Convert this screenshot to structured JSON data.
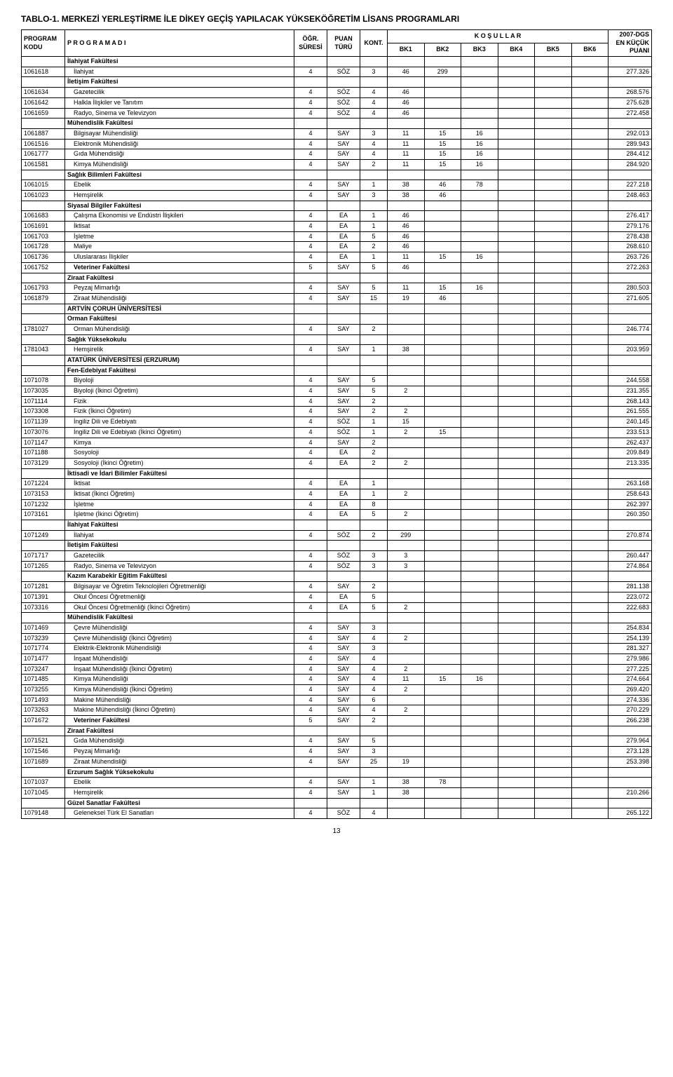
{
  "title": "TABLO-1. MERKEZİ YERLEŞTİRME İLE DİKEY GEÇİŞ YAPILACAK YÜKSEKÖĞRETİM LİSANS PROGRAMLARI",
  "page_number": "13",
  "headers": {
    "top_right": "2007-DGS",
    "kodu_top": "PROGRAM",
    "kodu": "KODU",
    "adi": "P R O G R A M   A D I",
    "sure_top": "ÖĞR.",
    "sure": "SÜRESİ",
    "turu_top": "PUAN",
    "turu": "TÜRÜ",
    "kont": "KONT.",
    "kosul": "K O Ş U L L A R",
    "bk1": "BK1",
    "bk2": "BK2",
    "bk3": "BK3",
    "bk4": "BK4",
    "bk5": "BK5",
    "bk6": "BK6",
    "puan_top": "EN KÜÇÜK",
    "puan": "PUANI"
  },
  "rows": [
    {
      "type": "section",
      "adi": "İlahiyat Fakültesi"
    },
    {
      "kod": "1061618",
      "adi": "İlahiyat",
      "sure": "4",
      "turu": "SÖZ",
      "kont": "3",
      "bk1": "46",
      "bk2": "299",
      "puan": "277.326"
    },
    {
      "type": "section",
      "adi": "İletişim Fakültesi"
    },
    {
      "kod": "1061634",
      "adi": "Gazetecilik",
      "sure": "4",
      "turu": "SÖZ",
      "kont": "4",
      "bk1": "46",
      "puan": "268.576"
    },
    {
      "kod": "1061642",
      "adi": "Halkla İlişkiler ve Tanıtım",
      "sure": "4",
      "turu": "SÖZ",
      "kont": "4",
      "bk1": "46",
      "puan": "275.628"
    },
    {
      "kod": "1061659",
      "adi": "Radyo, Sinema ve Televizyon",
      "sure": "4",
      "turu": "SÖZ",
      "kont": "4",
      "bk1": "46",
      "puan": "272.458"
    },
    {
      "type": "section",
      "adi": "Mühendislik Fakültesi"
    },
    {
      "kod": "1061887",
      "adi": "Bilgisayar Mühendisliği",
      "sure": "4",
      "turu": "SAY",
      "kont": "3",
      "bk1": "11",
      "bk2": "15",
      "bk3": "16",
      "puan": "292.013"
    },
    {
      "kod": "1061516",
      "adi": "Elektronik Mühendisliği",
      "sure": "4",
      "turu": "SAY",
      "kont": "4",
      "bk1": "11",
      "bk2": "15",
      "bk3": "16",
      "puan": "289.943"
    },
    {
      "kod": "1061777",
      "adi": "Gıda Mühendisliği",
      "sure": "4",
      "turu": "SAY",
      "kont": "4",
      "bk1": "11",
      "bk2": "15",
      "bk3": "16",
      "puan": "284.412"
    },
    {
      "kod": "1061581",
      "adi": "Kimya Mühendisliği",
      "sure": "4",
      "turu": "SAY",
      "kont": "2",
      "bk1": "11",
      "bk2": "15",
      "bk3": "16",
      "puan": "284.920"
    },
    {
      "type": "section",
      "adi": "Sağlık Bilimleri Fakültesi"
    },
    {
      "kod": "1061015",
      "adi": "Ebelik",
      "sure": "4",
      "turu": "SAY",
      "kont": "1",
      "bk1": "38",
      "bk2": "46",
      "bk3": "78",
      "puan": "227.218"
    },
    {
      "kod": "1061023",
      "adi": "Hemşirelik",
      "sure": "4",
      "turu": "SAY",
      "kont": "3",
      "bk1": "38",
      "bk2": "46",
      "puan": "248.463"
    },
    {
      "type": "section",
      "adi": "Siyasal Bilgiler Fakültesi"
    },
    {
      "kod": "1061683",
      "adi": "Çalışma Ekonomisi ve Endüstri İlişkileri",
      "sure": "4",
      "turu": "EA",
      "kont": "1",
      "bk1": "46",
      "puan": "276.417"
    },
    {
      "kod": "1061691",
      "adi": "İktisat",
      "sure": "4",
      "turu": "EA",
      "kont": "1",
      "bk1": "46",
      "puan": "279.176"
    },
    {
      "kod": "1061703",
      "adi": "İşletme",
      "sure": "4",
      "turu": "EA",
      "kont": "5",
      "bk1": "46",
      "puan": "278.438"
    },
    {
      "kod": "1061728",
      "adi": "Maliye",
      "sure": "4",
      "turu": "EA",
      "kont": "2",
      "bk1": "46",
      "puan": "268.610"
    },
    {
      "kod": "1061736",
      "adi": "Uluslararası İlişkiler",
      "sure": "4",
      "turu": "EA",
      "kont": "1",
      "bk1": "11",
      "bk2": "15",
      "bk3": "16",
      "puan": "263.726"
    },
    {
      "type": "bold",
      "kod": "1061752",
      "adi": "Veteriner Fakültesi",
      "sure": "5",
      "turu": "SAY",
      "kont": "5",
      "bk1": "46",
      "puan": "272.263"
    },
    {
      "type": "section",
      "adi": "Ziraat Fakültesi"
    },
    {
      "kod": "1061793",
      "adi": "Peyzaj Mimarlığı",
      "sure": "4",
      "turu": "SAY",
      "kont": "5",
      "bk1": "11",
      "bk2": "15",
      "bk3": "16",
      "puan": "280.503"
    },
    {
      "kod": "1061879",
      "adi": "Ziraat Mühendisliği",
      "sure": "4",
      "turu": "SAY",
      "kont": "15",
      "bk1": "19",
      "bk2": "46",
      "puan": "271.605"
    },
    {
      "type": "section",
      "adi": "ARTVİN ÇORUH ÜNİVERSİTESİ"
    },
    {
      "type": "section",
      "adi": "Orman Fakültesi"
    },
    {
      "kod": "1781027",
      "adi": "Orman Mühendisliği",
      "sure": "4",
      "turu": "SAY",
      "kont": "2",
      "puan": "246.774"
    },
    {
      "type": "section",
      "adi": "Sağlık Yüksekokulu"
    },
    {
      "kod": "1781043",
      "adi": "Hemşirelik",
      "sure": "4",
      "turu": "SAY",
      "kont": "1",
      "bk1": "38",
      "puan": "203.959"
    },
    {
      "type": "section",
      "adi": "ATATÜRK ÜNİVERSİTESİ (ERZURUM)"
    },
    {
      "type": "section",
      "adi": "Fen-Edebiyat Fakültesi"
    },
    {
      "kod": "1071078",
      "adi": "Biyoloji",
      "sure": "4",
      "turu": "SAY",
      "kont": "5",
      "puan": "244.558"
    },
    {
      "kod": "1073035",
      "adi": "Biyoloji (İkinci Öğretim)",
      "sure": "4",
      "turu": "SAY",
      "kont": "5",
      "bk1": "2",
      "puan": "231.355"
    },
    {
      "kod": "1071114",
      "adi": "Fizik",
      "sure": "4",
      "turu": "SAY",
      "kont": "2",
      "puan": "268.143"
    },
    {
      "kod": "1073308",
      "adi": "Fizik (İkinci Öğretim)",
      "sure": "4",
      "turu": "SAY",
      "kont": "2",
      "bk1": "2",
      "puan": "261.555"
    },
    {
      "kod": "1071139",
      "adi": "İngiliz Dili ve Edebiyatı",
      "sure": "4",
      "turu": "SÖZ",
      "kont": "1",
      "bk1": "15",
      "puan": "240.145"
    },
    {
      "kod": "1073076",
      "adi": "İngiliz Dili ve Edebiyatı (İkinci Öğretim)",
      "sure": "4",
      "turu": "SÖZ",
      "kont": "1",
      "bk1": "2",
      "bk2": "15",
      "puan": "233.513"
    },
    {
      "kod": "1071147",
      "adi": "Kimya",
      "sure": "4",
      "turu": "SAY",
      "kont": "2",
      "puan": "262.437"
    },
    {
      "kod": "1071188",
      "adi": "Sosyoloji",
      "sure": "4",
      "turu": "EA",
      "kont": "2",
      "puan": "209.849"
    },
    {
      "kod": "1073129",
      "adi": "Sosyoloji (İkinci Öğretim)",
      "sure": "4",
      "turu": "EA",
      "kont": "2",
      "bk1": "2",
      "puan": "213.335"
    },
    {
      "type": "section",
      "adi": "İktisadi ve İdari Bilimler Fakültesi"
    },
    {
      "kod": "1071224",
      "adi": "İktisat",
      "sure": "4",
      "turu": "EA",
      "kont": "1",
      "puan": "263.168"
    },
    {
      "kod": "1073153",
      "adi": "İktisat (İkinci Öğretim)",
      "sure": "4",
      "turu": "EA",
      "kont": "1",
      "bk1": "2",
      "puan": "258.643"
    },
    {
      "kod": "1071232",
      "adi": "İşletme",
      "sure": "4",
      "turu": "EA",
      "kont": "8",
      "puan": "262.397"
    },
    {
      "kod": "1073161",
      "adi": "İşletme (İkinci Öğretim)",
      "sure": "4",
      "turu": "EA",
      "kont": "5",
      "bk1": "2",
      "puan": "260.350"
    },
    {
      "type": "section",
      "adi": "İlahiyat Fakültesi"
    },
    {
      "kod": "1071249",
      "adi": "İlahiyat",
      "sure": "4",
      "turu": "SÖZ",
      "kont": "2",
      "bk1": "299",
      "puan": "270.874"
    },
    {
      "type": "section",
      "adi": "İletişim Fakültesi"
    },
    {
      "kod": "1071717",
      "adi": "Gazetecilik",
      "sure": "4",
      "turu": "SÖZ",
      "kont": "3",
      "bk1": "3",
      "puan": "260.447"
    },
    {
      "kod": "1071265",
      "adi": "Radyo, Sinema ve Televizyon",
      "sure": "4",
      "turu": "SÖZ",
      "kont": "3",
      "bk1": "3",
      "puan": "274.864"
    },
    {
      "type": "section",
      "adi": "Kazım Karabekir Eğitim Fakültesi"
    },
    {
      "kod": "1071281",
      "adi": "Bilgisayar ve Öğretim Teknolojileri Öğretmenliği",
      "sure": "4",
      "turu": "SAY",
      "kont": "2",
      "puan": "281.138"
    },
    {
      "kod": "1071391",
      "adi": "Okul Öncesi Öğretmenliği",
      "sure": "4",
      "turu": "EA",
      "kont": "5",
      "puan": "223.072"
    },
    {
      "kod": "1073316",
      "adi": "Okul Öncesi Öğretmenliği (İkinci Öğretim)",
      "sure": "4",
      "turu": "EA",
      "kont": "5",
      "bk1": "2",
      "puan": "222.683"
    },
    {
      "type": "section",
      "adi": "Mühendislik Fakültesi"
    },
    {
      "kod": "1071469",
      "adi": "Çevre Mühendisliği",
      "sure": "4",
      "turu": "SAY",
      "kont": "3",
      "puan": "254.834"
    },
    {
      "kod": "1073239",
      "adi": "Çevre Mühendisliği (İkinci Öğretim)",
      "sure": "4",
      "turu": "SAY",
      "kont": "4",
      "bk1": "2",
      "puan": "254.139"
    },
    {
      "kod": "1071774",
      "adi": "Elektrik-Elektronik Mühendisliği",
      "sure": "4",
      "turu": "SAY",
      "kont": "3",
      "puan": "281.327"
    },
    {
      "kod": "1071477",
      "adi": "İnşaat Mühendisliği",
      "sure": "4",
      "turu": "SAY",
      "kont": "4",
      "puan": "279.986"
    },
    {
      "kod": "1073247",
      "adi": "İnşaat Mühendisliği (İkinci Öğretim)",
      "sure": "4",
      "turu": "SAY",
      "kont": "4",
      "bk1": "2",
      "puan": "277.225"
    },
    {
      "kod": "1071485",
      "adi": "Kimya Mühendisliği",
      "sure": "4",
      "turu": "SAY",
      "kont": "4",
      "bk1": "11",
      "bk2": "15",
      "bk3": "16",
      "puan": "274.664"
    },
    {
      "kod": "1073255",
      "adi": "Kimya Mühendisliği (İkinci Öğretim)",
      "sure": "4",
      "turu": "SAY",
      "kont": "4",
      "bk1": "2",
      "puan": "269.420"
    },
    {
      "kod": "1071493",
      "adi": "Makine Mühendisliği",
      "sure": "4",
      "turu": "SAY",
      "kont": "6",
      "puan": "274.336"
    },
    {
      "kod": "1073263",
      "adi": "Makine Mühendisliği (İkinci Öğretim)",
      "sure": "4",
      "turu": "SAY",
      "kont": "4",
      "bk1": "2",
      "puan": "270.229"
    },
    {
      "type": "bold",
      "kod": "1071672",
      "adi": "Veteriner Fakültesi",
      "sure": "5",
      "turu": "SAY",
      "kont": "2",
      "puan": "266.238"
    },
    {
      "type": "section",
      "adi": "Ziraat Fakültesi"
    },
    {
      "kod": "1071521",
      "adi": "Gıda Mühendisliği",
      "sure": "4",
      "turu": "SAY",
      "kont": "5",
      "puan": "279.964"
    },
    {
      "kod": "1071546",
      "adi": "Peyzaj Mimarlığı",
      "sure": "4",
      "turu": "SAY",
      "kont": "3",
      "puan": "273.128"
    },
    {
      "kod": "1071689",
      "adi": "Ziraat Mühendisliği",
      "sure": "4",
      "turu": "SAY",
      "kont": "25",
      "bk1": "19",
      "puan": "253.398"
    },
    {
      "type": "section",
      "adi": "Erzurum Sağlık Yüksekokulu"
    },
    {
      "kod": "1071037",
      "adi": "Ebelik",
      "sure": "4",
      "turu": "SAY",
      "kont": "1",
      "bk1": "38",
      "bk2": "78"
    },
    {
      "kod": "1071045",
      "adi": "Hemşirelik",
      "sure": "4",
      "turu": "SAY",
      "kont": "1",
      "bk1": "38",
      "puan": "210.266"
    },
    {
      "type": "section",
      "adi": "Güzel Sanatlar Fakültesi"
    },
    {
      "kod": "1079148",
      "adi": "Geleneksel Türk El Sanatları",
      "sure": "4",
      "turu": "SÖZ",
      "kont": "4",
      "puan": "265.122"
    }
  ]
}
